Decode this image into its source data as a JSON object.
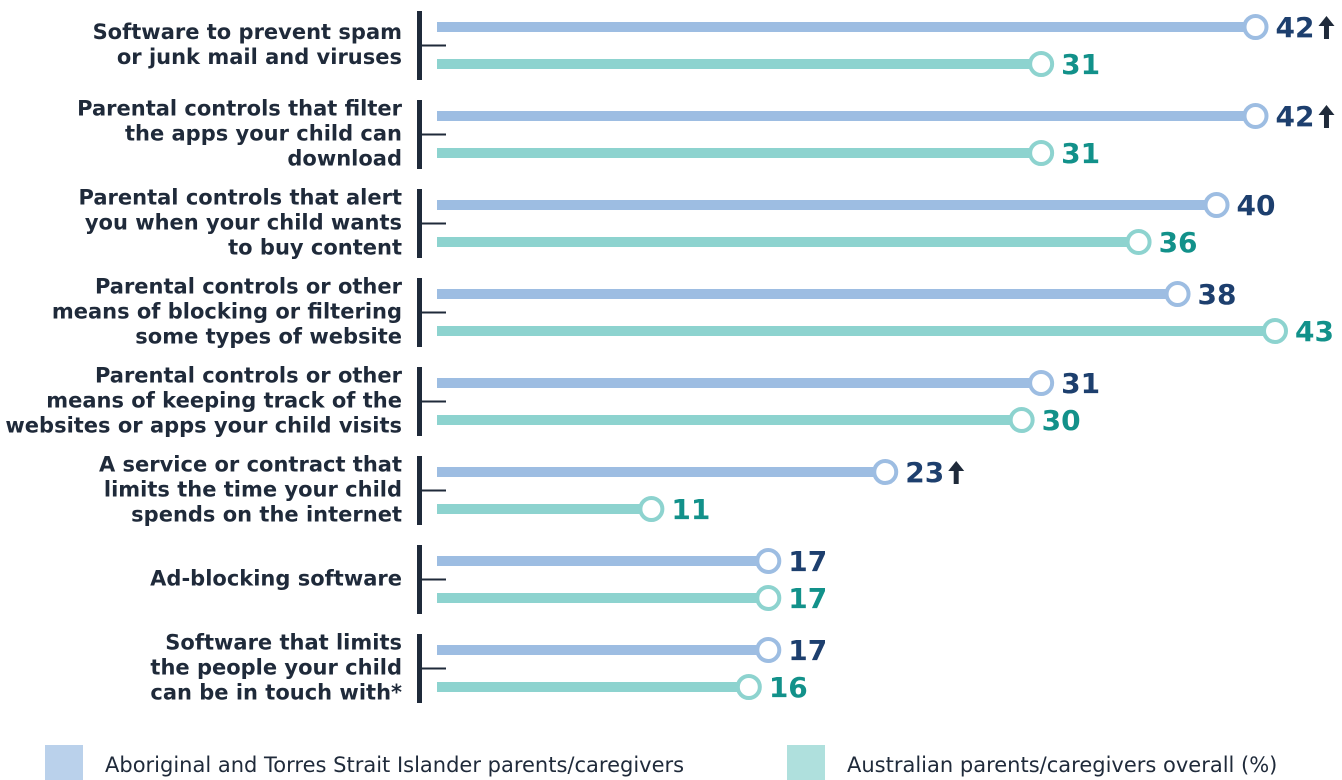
{
  "chart_data": {
    "type": "lollipop",
    "categories": [
      [
        "Software to prevent spam",
        "or junk mail and viruses"
      ],
      [
        "Parental controls that filter",
        "the apps your child can",
        "download"
      ],
      [
        "Parental controls that alert",
        "you when your child wants",
        "to buy content"
      ],
      [
        "Parental controls or other",
        "means of blocking or filtering",
        "some types of website"
      ],
      [
        "Parental controls or other",
        "means of keeping track of the",
        "websites or apps your child visits"
      ],
      [
        "A service or contract that",
        "limits the time your child",
        "spends on the internet"
      ],
      [
        "Ad-blocking software"
      ],
      [
        "Software that limits",
        "the people your child",
        "can be in touch with*"
      ]
    ],
    "series": [
      {
        "name": "Aboriginal and Torres Strait Islander parents/caregivers",
        "color": "#9dbde2",
        "label_color": "#1d3f6e",
        "values": [
          42,
          42,
          40,
          38,
          31,
          23,
          17,
          17
        ],
        "significant_increase": [
          true,
          true,
          false,
          false,
          false,
          true,
          false,
          false
        ]
      },
      {
        "name": "Australian parents/caregivers overall (%)",
        "color": "#8dd3cf",
        "label_color": "#12918a",
        "values": [
          31,
          31,
          36,
          43,
          30,
          11,
          17,
          16
        ]
      }
    ],
    "legend": "bottom"
  }
}
